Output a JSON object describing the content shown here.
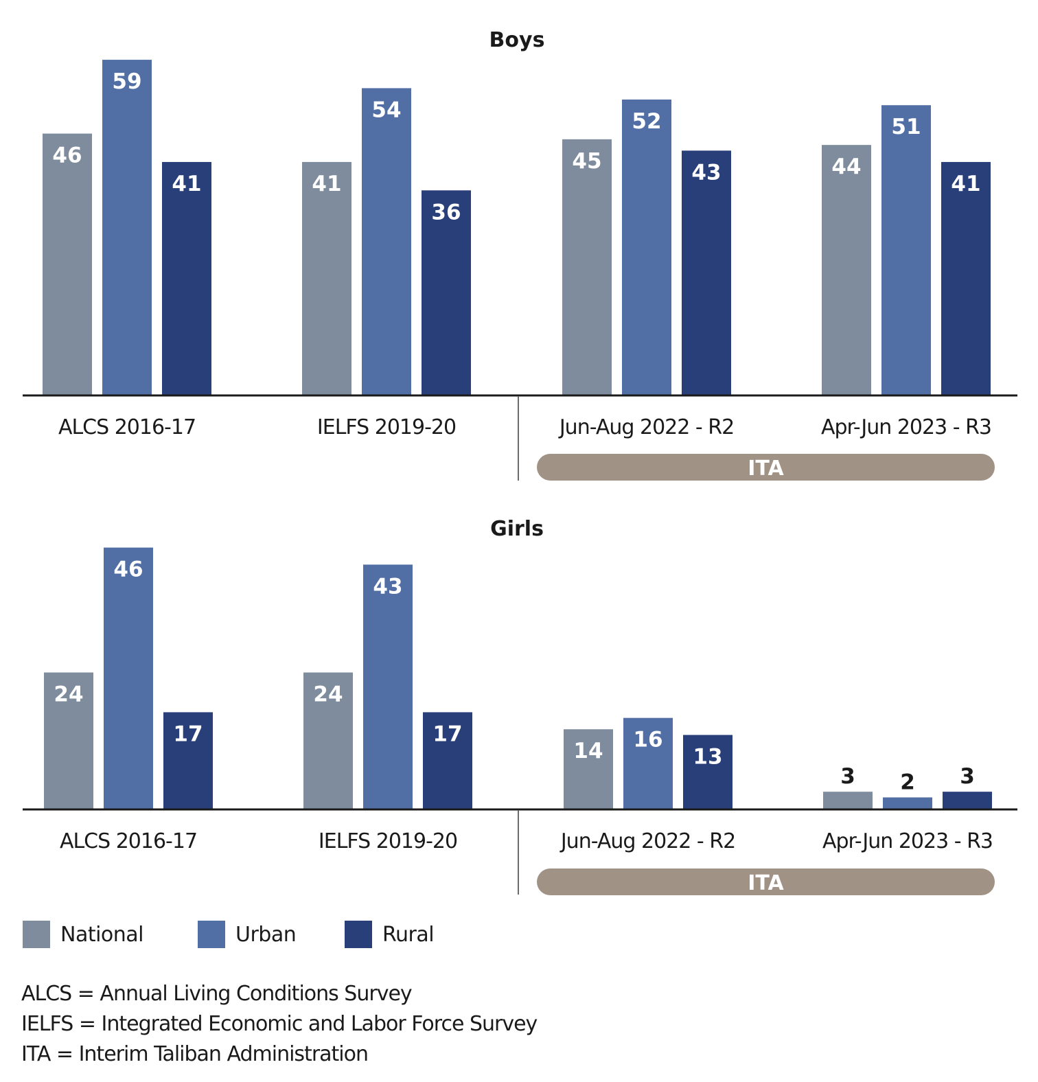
{
  "chart_data": [
    {
      "type": "bar",
      "title": "Boys",
      "categories": [
        "ALCS 2016-17",
        "IELFS 2019-20",
        "Jun-Aug 2022 - R2",
        "Apr-Jun 2023 - R3"
      ],
      "series": [
        {
          "name": "National",
          "values": [
            46,
            41,
            45,
            44
          ]
        },
        {
          "name": "Urban",
          "values": [
            59,
            54,
            52,
            51
          ]
        },
        {
          "name": "Rural",
          "values": [
            41,
            36,
            43,
            41
          ]
        }
      ],
      "group_bracket": {
        "label": "ITA",
        "categories": [
          "Jun-Aug 2022 - R2",
          "Apr-Jun 2023 - R3"
        ]
      },
      "xlabel": "",
      "ylabel": "",
      "grid": false,
      "data_labels": true
    },
    {
      "type": "bar",
      "title": "Girls",
      "categories": [
        "ALCS 2016-17",
        "IELFS 2019-20",
        "Jun-Aug 2022 - R2",
        "Apr-Jun 2023 - R3"
      ],
      "series": [
        {
          "name": "National",
          "values": [
            24,
            24,
            14,
            3
          ]
        },
        {
          "name": "Urban",
          "values": [
            46,
            43,
            16,
            2
          ]
        },
        {
          "name": "Rural",
          "values": [
            17,
            17,
            13,
            3
          ]
        }
      ],
      "group_bracket": {
        "label": "ITA",
        "categories": [
          "Jun-Aug 2022 - R2",
          "Apr-Jun 2023 - R3"
        ]
      },
      "xlabel": "",
      "ylabel": "",
      "grid": false,
      "data_labels": true
    }
  ],
  "colors": {
    "National": "#7f8c9d",
    "Urban": "#516ea5",
    "Rural": "#293f7a",
    "bracket": "#a09285",
    "axis": "#1a1a1a",
    "divider": "#6b6b6b"
  },
  "legend": {
    "position": "bottom-left",
    "items": [
      {
        "label": "National",
        "color": "#7f8c9d"
      },
      {
        "label": "Urban",
        "color": "#516ea5"
      },
      {
        "label": "Rural",
        "color": "#293f7a"
      }
    ]
  },
  "notes": [
    "ALCS = Annual Living Conditions Survey",
    "IELFS = Integrated Economic and Labor Force Survey",
    "ITA = Interim Taliban Administration"
  ]
}
